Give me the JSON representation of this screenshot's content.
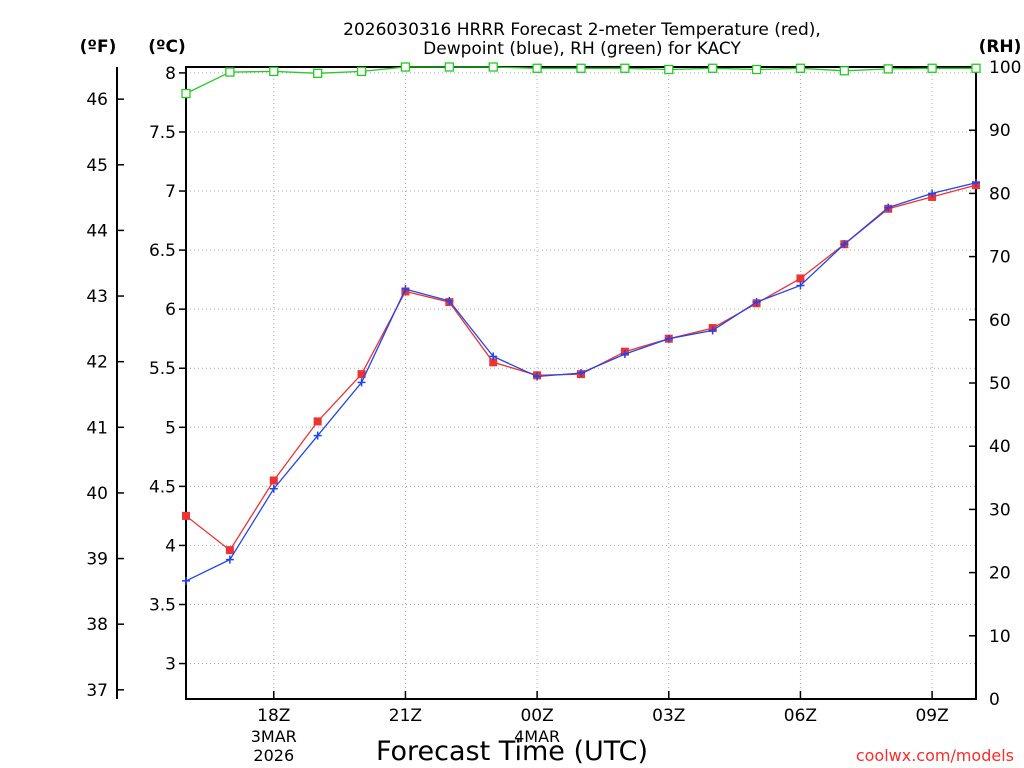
{
  "title_line1": "2026030316 HRRR Forecast 2-meter Temperature (red),",
  "title_line2": "Dewpoint (blue), RH (green) for KACY",
  "xlabel": "Forecast Time (UTC)",
  "credit": "coolwx.com/models",
  "unit_f": "(ºF)",
  "unit_c": "(ºC)",
  "unit_rh": "(RH)",
  "colors": {
    "temperature": "#ee3333",
    "dewpoint": "#2244ee",
    "rh": "#22cc22",
    "grid": "#aaaaaa"
  },
  "chart_data": {
    "type": "line",
    "title": "2026030316 HRRR Forecast 2-meter Temperature (red), Dewpoint (blue), RH (green) for KACY",
    "xlabel": "Forecast Time (UTC)",
    "x_hours": [
      16,
      17,
      18,
      19,
      20,
      21,
      22,
      23,
      24,
      25,
      26,
      27,
      28,
      29,
      30,
      31,
      32,
      33,
      34
    ],
    "x_ticks": [
      {
        "hour": 18,
        "label": "18Z",
        "sub1": "3MAR",
        "sub2": "2026"
      },
      {
        "hour": 21,
        "label": "21Z",
        "sub1": "",
        "sub2": ""
      },
      {
        "hour": 24,
        "label": "00Z",
        "sub1": "4MAR",
        "sub2": ""
      },
      {
        "hour": 27,
        "label": "03Z",
        "sub1": "",
        "sub2": ""
      },
      {
        "hour": 30,
        "label": "06Z",
        "sub1": "",
        "sub2": ""
      },
      {
        "hour": 33,
        "label": "09Z",
        "sub1": "",
        "sub2": ""
      }
    ],
    "y_left_c": {
      "min": 2.7,
      "max": 8.05,
      "ticks": [
        3,
        3.5,
        4,
        4.5,
        5,
        5.5,
        6,
        6.5,
        7,
        7.5,
        8
      ]
    },
    "y_left_f": {
      "ticks": [
        37,
        38,
        39,
        40,
        41,
        42,
        43,
        44,
        45,
        46
      ]
    },
    "y_right_rh": {
      "min": 0,
      "max": 100,
      "ticks": [
        0,
        10,
        20,
        30,
        40,
        50,
        60,
        70,
        80,
        90,
        100
      ]
    },
    "grid": true,
    "series": [
      {
        "name": "Temperature (red)",
        "axis": "C",
        "marker": "square",
        "values": [
          4.25,
          3.96,
          4.55,
          5.05,
          5.45,
          6.15,
          6.06,
          5.55,
          5.44,
          5.45,
          5.64,
          5.75,
          5.84,
          6.05,
          6.26,
          6.55,
          6.85,
          6.95,
          7.05
        ]
      },
      {
        "name": "Dewpoint (blue)",
        "axis": "C",
        "marker": "plus",
        "values": [
          3.7,
          3.88,
          4.48,
          4.93,
          5.38,
          6.17,
          6.07,
          5.6,
          5.43,
          5.46,
          5.62,
          5.75,
          5.82,
          6.06,
          6.2,
          6.55,
          6.86,
          6.98,
          7.07
        ]
      },
      {
        "name": "RH (green)",
        "axis": "RH",
        "marker": "open-square",
        "values": [
          95.8,
          99.2,
          99.3,
          99.0,
          99.3,
          100,
          100,
          100,
          99.8,
          99.8,
          99.8,
          99.6,
          99.8,
          99.6,
          99.8,
          99.4,
          99.7,
          99.8,
          99.8
        ]
      }
    ]
  }
}
